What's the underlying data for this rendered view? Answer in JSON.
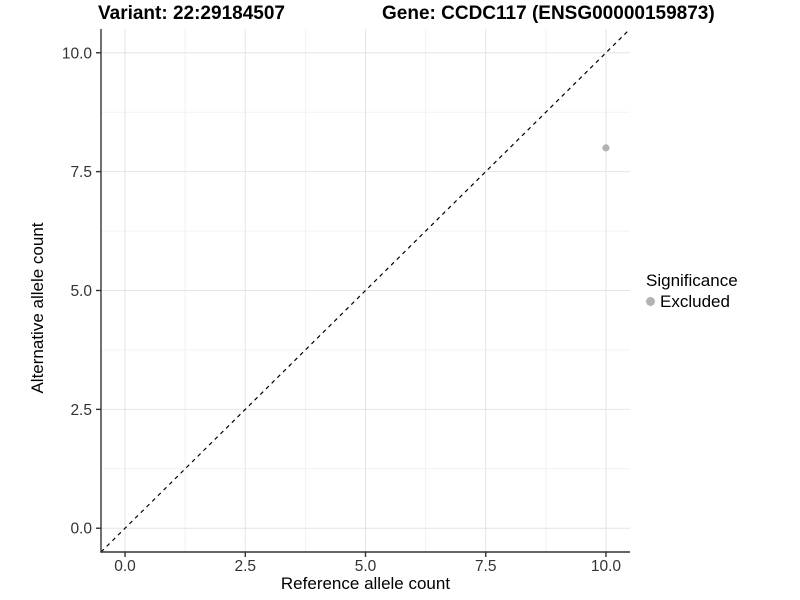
{
  "titles": {
    "variant": "Variant: 22:29184507",
    "gene": "Gene: CCDC117 (ENSG00000159873)"
  },
  "axes": {
    "x": {
      "label": "Reference allele count"
    },
    "y": {
      "label": "Alternative allele count"
    }
  },
  "legend": {
    "title": "Significance",
    "items": [
      {
        "label": "Excluded",
        "color": "#b3b3b3"
      }
    ]
  },
  "chart_data": {
    "type": "scatter",
    "title": "Variant: 22:29184507 — Gene: CCDC117 (ENSG00000159873)",
    "xlabel": "Reference allele count",
    "ylabel": "Alternative allele count",
    "xlim": [
      -0.5,
      10.5
    ],
    "ylim": [
      -0.5,
      10.5
    ],
    "x_ticks": [
      0,
      2.5,
      5,
      7.5,
      10
    ],
    "x_tick_labels": [
      "0.0",
      "2.5",
      "5.0",
      "7.5",
      "10.0"
    ],
    "y_ticks": [
      0,
      2.5,
      5,
      7.5,
      10
    ],
    "y_tick_labels": [
      "0.0",
      "2.5",
      "5.0",
      "7.5",
      "10.0"
    ],
    "x_minor_ticks": [
      1.25,
      3.75,
      6.25,
      8.75
    ],
    "y_minor_ticks": [
      1.25,
      3.75,
      6.25,
      8.75
    ],
    "grid": "major+minor",
    "legend_position": "right",
    "series": [
      {
        "name": "Excluded",
        "color": "#b3b3b3",
        "points": [
          {
            "x": 10,
            "y": 8
          }
        ]
      }
    ],
    "reference_line": {
      "kind": "identity",
      "from": [
        -0.5,
        -0.5
      ],
      "to": [
        10.5,
        10.5
      ],
      "style": "dashed",
      "color": "#000000"
    },
    "colors": {
      "grid_major": "#e4e4e4",
      "grid_minor": "#f2f2f2",
      "axis": "#333333"
    }
  }
}
